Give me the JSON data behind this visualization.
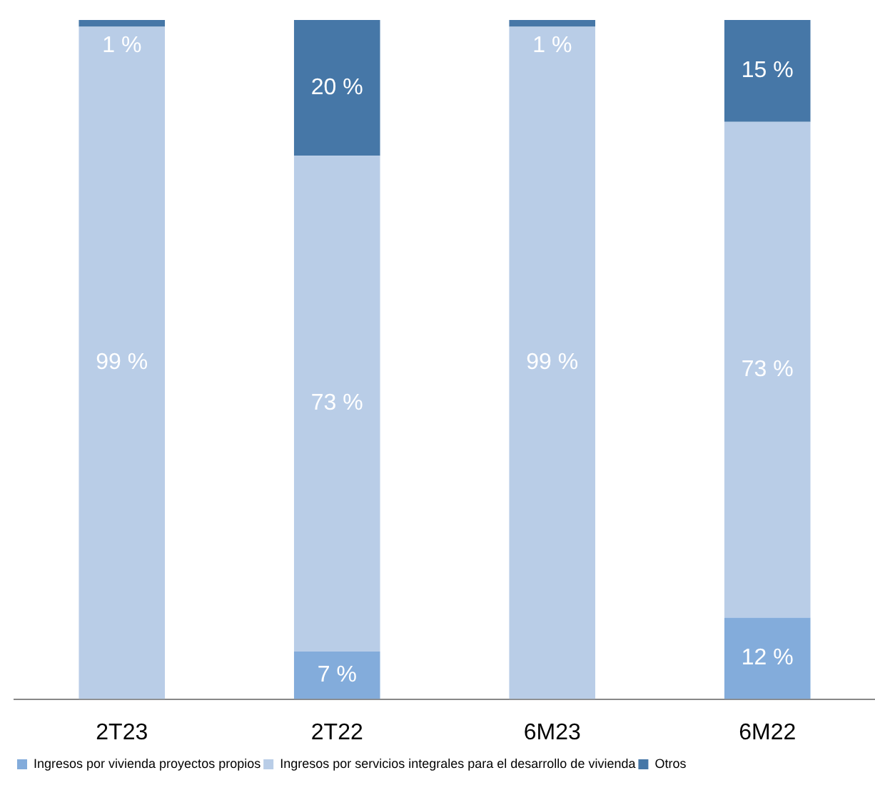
{
  "chart_data": {
    "type": "bar",
    "stacked": true,
    "categories": [
      "2T23",
      "2T22",
      "6M23",
      "6M22"
    ],
    "ylim": [
      0,
      100
    ],
    "tick_labels": "x",
    "grid": false,
    "legend": "bottom left",
    "series": [
      {
        "name": "Ingresos por vivienda proyectos propios",
        "color": "#83acdb",
        "values": [
          0,
          7,
          0,
          12
        ],
        "value_labels": [
          null,
          "7 %",
          null,
          "12 %"
        ]
      },
      {
        "name": "Ingresos por servicios integrales para el desarrollo de vivienda",
        "color": "#b9cde7",
        "values": [
          99,
          73,
          99,
          73
        ],
        "value_labels": [
          "99 %",
          "73 %",
          "99 %",
          "73 %"
        ]
      },
      {
        "name": "Otros",
        "color": "#4677a7",
        "values": [
          1,
          20,
          1,
          15
        ],
        "value_labels": [
          "1 %",
          "20 %",
          "1 %",
          "15 %"
        ]
      }
    ]
  }
}
